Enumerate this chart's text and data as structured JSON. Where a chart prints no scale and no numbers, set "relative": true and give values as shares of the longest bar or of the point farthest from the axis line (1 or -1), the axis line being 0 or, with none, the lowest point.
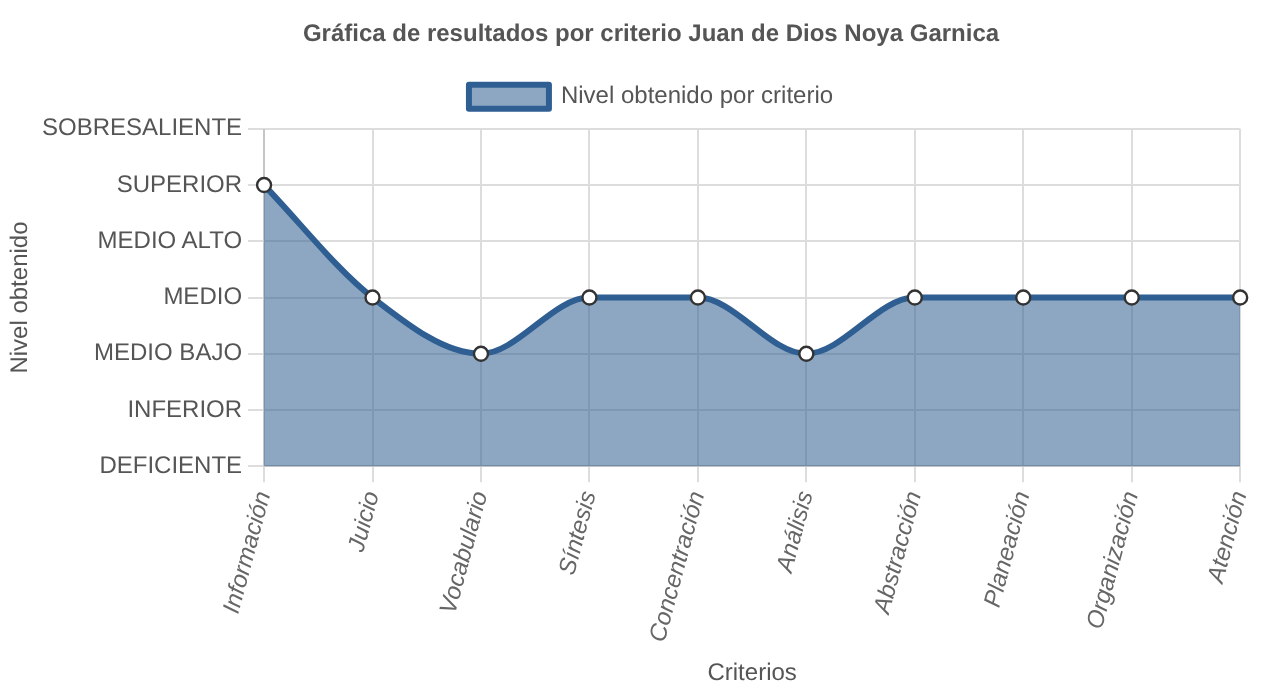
{
  "chart_data": {
    "type": "area",
    "title": "Gráfica de resultados por criterio Juan de Dios Noya Garnica",
    "xlabel": "Criterios",
    "annotations": [
      "Nivel obtenido"
    ],
    "categories": [
      "Información",
      "Juicio",
      "Vocabulario",
      "Síntesis",
      "Concentración",
      "Análisis",
      "Abstracción",
      "Planeación",
      "Organización",
      "Atención"
    ],
    "y_categories": [
      "SOBRESALIENTE",
      "SUPERIOR",
      "MEDIO ALTO",
      "MEDIO",
      "MEDIO BAJO",
      "INFERIOR",
      "DEFICIENTE"
    ],
    "relative": true,
    "series": [
      {
        "name": "Nivel obtenido por criterio",
        "color": "#2f5f92",
        "values": [
          1,
          0.6,
          0.4,
          0.6,
          0.6,
          0.4,
          0.6,
          0.6,
          0.6,
          0.6
        ]
      }
    ],
    "grid": true,
    "legend": "top",
    "marker": "circle",
    "line_style": "solid"
  }
}
